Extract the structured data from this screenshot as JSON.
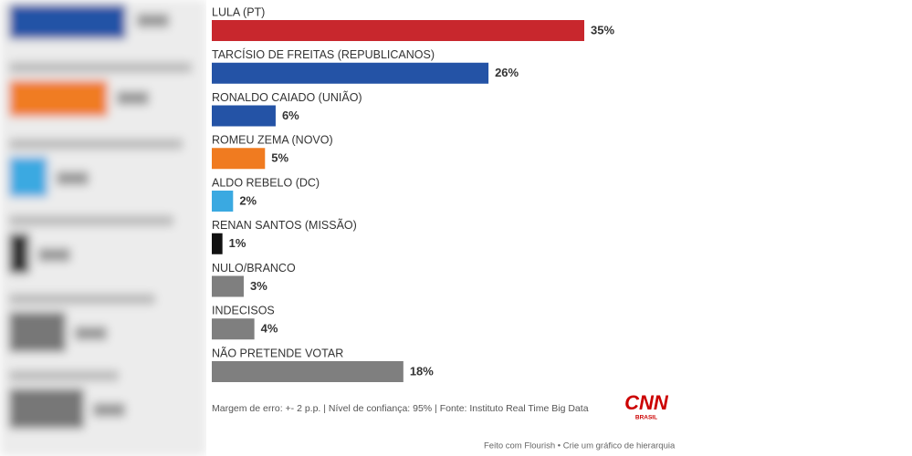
{
  "chart_data": {
    "type": "bar",
    "orientation": "horizontal",
    "categories": [
      "LULA (PT)",
      "TARCÍSIO DE FREITAS (REPUBLICANOS)",
      "RONALDO CAIADO (UNIÃO)",
      "ROMEU ZEMA (NOVO)",
      "ALDO REBELO (DC)",
      "RENAN SANTOS (MISSÃO)",
      "NULO/BRANCO",
      "INDECISOS",
      "NÃO PRETENDE VOTAR"
    ],
    "values": [
      35,
      26,
      6,
      5,
      2,
      1,
      3,
      4,
      18
    ],
    "value_labels": [
      "35%",
      "26%",
      "6%",
      "5%",
      "2%",
      "1%",
      "3%",
      "4%",
      "18%"
    ],
    "colors": [
      "#c8272d",
      "#2453a6",
      "#2453a6",
      "#f07b20",
      "#3aa9e1",
      "#111111",
      "#7f7f7f",
      "#7f7f7f",
      "#7f7f7f"
    ],
    "source_note": "Margem de erro: +- 2 p.p. | Nível de confiança: 95% | Fonte: Instituto Real Time Big Data"
  },
  "branding": {
    "logo": "CNN",
    "logo_sub": "BRASIL"
  },
  "credit": "Feito com Flourish • Crie um gráfico de hierarquia"
}
